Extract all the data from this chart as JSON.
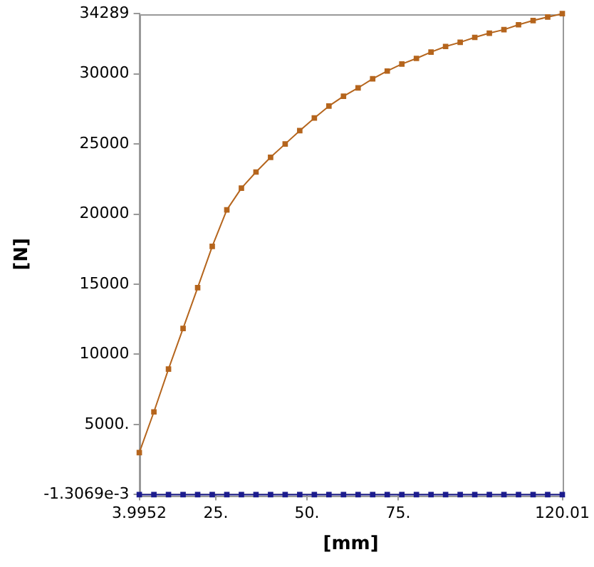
{
  "chart_data": {
    "type": "line",
    "xlabel": "[mm]",
    "ylabel": "[N]",
    "x": [
      3.9952,
      8,
      12,
      16,
      20,
      24,
      28,
      32,
      36,
      40,
      44,
      48,
      52,
      56,
      60,
      64,
      68,
      72,
      76,
      80,
      84,
      88,
      92,
      96,
      100,
      104,
      108,
      112,
      116,
      120.01
    ],
    "series": [
      {
        "color": "#b5651d",
        "values": [
          3000,
          5900,
          8950,
          11850,
          14750,
          17700,
          20300,
          21850,
          23000,
          24050,
          25000,
          25950,
          26850,
          27700,
          28400,
          29000,
          29650,
          30200,
          30700,
          31100,
          31550,
          31950,
          32250,
          32600,
          32900,
          33150,
          33500,
          33800,
          34050,
          34289
        ]
      },
      {
        "color": "#1c1c8e",
        "values": [
          0,
          0,
          0,
          0,
          0,
          0,
          0,
          0,
          0,
          0,
          0,
          0,
          0,
          0,
          0,
          0,
          0,
          0,
          0,
          0,
          0,
          0,
          0,
          0,
          0,
          0,
          0,
          0,
          0,
          0
        ]
      }
    ],
    "xlim": [
      3.9952,
      120.01
    ],
    "xticks": [
      3.9952,
      {
        "value": 25,
        "label": "25."
      },
      {
        "value": 50,
        "label": "50."
      },
      {
        "value": 75,
        "label": "75."
      },
      120.01
    ],
    "ylim": [
      -0.0013069,
      34289
    ],
    "yticks": [
      {
        "value": -0.0013069,
        "label": "-1.3069e-3"
      },
      {
        "value": 5000,
        "label": "5000."
      },
      10000,
      15000,
      20000,
      25000,
      30000,
      34289
    ],
    "grid": false,
    "legend": false,
    "marker": "square",
    "line_style": "solid"
  }
}
